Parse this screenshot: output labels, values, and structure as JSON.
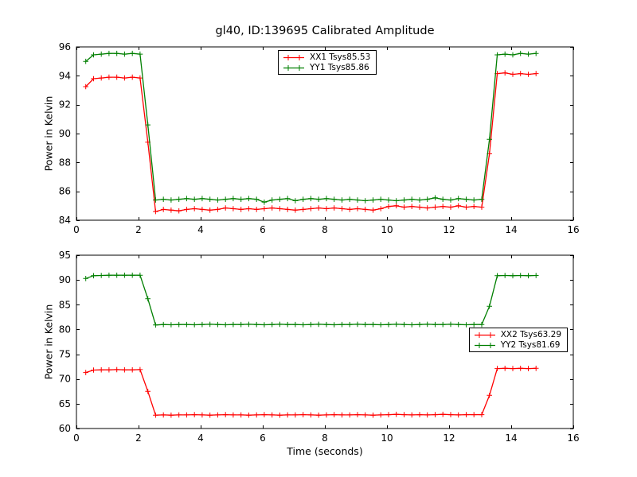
{
  "figure": {
    "title": "gl40, ID:139695 Calibrated Amplitude",
    "background_color": "#ffffff",
    "axis_color": "#000000"
  },
  "chart_data": [
    {
      "type": "line",
      "title": "gl40, ID:139695 Calibrated Amplitude",
      "xlabel": "",
      "ylabel": "Power in Kelvin",
      "xlim": [
        0,
        16
      ],
      "ylim": [
        84,
        96
      ],
      "xticks": [
        0,
        2,
        4,
        6,
        8,
        10,
        12,
        14,
        16
      ],
      "yticks": [
        84,
        86,
        88,
        90,
        92,
        94,
        96
      ],
      "grid": false,
      "legend_position": "upper center",
      "x": [
        0.3,
        0.55,
        0.8,
        1.05,
        1.3,
        1.55,
        1.8,
        2.05,
        2.3,
        2.55,
        2.8,
        3.05,
        3.3,
        3.55,
        3.8,
        4.05,
        4.3,
        4.55,
        4.8,
        5.05,
        5.3,
        5.55,
        5.8,
        6.05,
        6.3,
        6.55,
        6.8,
        7.05,
        7.3,
        7.55,
        7.8,
        8.05,
        8.3,
        8.55,
        8.8,
        9.05,
        9.3,
        9.55,
        9.8,
        10.05,
        10.3,
        10.55,
        10.8,
        11.05,
        11.3,
        11.55,
        11.8,
        12.05,
        12.3,
        12.55,
        12.8,
        13.05,
        13.3,
        13.55,
        13.8,
        14.05,
        14.3,
        14.55,
        14.8
      ],
      "series": [
        {
          "name": "XX1 Tsys85.53",
          "color": "#ff0000",
          "marker": "+",
          "y": [
            93.25,
            93.8,
            93.85,
            93.9,
            93.9,
            93.85,
            93.9,
            93.85,
            89.4,
            84.6,
            84.75,
            84.7,
            84.65,
            84.75,
            84.8,
            84.75,
            84.7,
            84.75,
            84.85,
            84.8,
            84.75,
            84.8,
            84.75,
            84.8,
            84.85,
            84.8,
            84.75,
            84.7,
            84.75,
            84.8,
            84.85,
            84.8,
            84.85,
            84.8,
            84.75,
            84.8,
            84.75,
            84.7,
            84.8,
            84.95,
            85.0,
            84.9,
            84.95,
            84.9,
            84.85,
            84.9,
            84.95,
            84.9,
            85.0,
            84.9,
            84.95,
            84.9,
            88.6,
            94.15,
            94.2,
            94.1,
            94.15,
            94.1,
            94.15
          ]
        },
        {
          "name": "YY1 Tsys85.86",
          "color": "#007f00",
          "marker": "+",
          "y": [
            95.0,
            95.45,
            95.5,
            95.55,
            95.55,
            95.5,
            95.55,
            95.5,
            90.6,
            85.4,
            85.45,
            85.4,
            85.45,
            85.5,
            85.45,
            85.5,
            85.45,
            85.4,
            85.45,
            85.5,
            85.45,
            85.5,
            85.45,
            85.25,
            85.4,
            85.45,
            85.5,
            85.35,
            85.45,
            85.5,
            85.45,
            85.5,
            85.45,
            85.4,
            85.45,
            85.4,
            85.35,
            85.4,
            85.45,
            85.4,
            85.35,
            85.4,
            85.45,
            85.4,
            85.45,
            85.55,
            85.45,
            85.4,
            85.5,
            85.45,
            85.4,
            85.45,
            89.6,
            95.45,
            95.5,
            95.45,
            95.55,
            95.5,
            95.55
          ]
        }
      ]
    },
    {
      "type": "line",
      "title": "",
      "xlabel": "Time (seconds)",
      "ylabel": "Power in Kelvin",
      "xlim": [
        0,
        16
      ],
      "ylim": [
        60,
        95
      ],
      "xticks": [
        0,
        2,
        4,
        6,
        8,
        10,
        12,
        14,
        16
      ],
      "yticks": [
        60,
        65,
        70,
        75,
        80,
        85,
        90,
        95
      ],
      "grid": false,
      "legend_position": "center right",
      "x": [
        0.3,
        0.55,
        0.8,
        1.05,
        1.3,
        1.55,
        1.8,
        2.05,
        2.3,
        2.55,
        2.8,
        3.05,
        3.3,
        3.55,
        3.8,
        4.05,
        4.3,
        4.55,
        4.8,
        5.05,
        5.3,
        5.55,
        5.8,
        6.05,
        6.3,
        6.55,
        6.8,
        7.05,
        7.3,
        7.55,
        7.8,
        8.05,
        8.3,
        8.55,
        8.8,
        9.05,
        9.3,
        9.55,
        9.8,
        10.05,
        10.3,
        10.55,
        10.8,
        11.05,
        11.3,
        11.55,
        11.8,
        12.05,
        12.3,
        12.55,
        12.8,
        13.05,
        13.3,
        13.55,
        13.8,
        14.05,
        14.3,
        14.55,
        14.8
      ],
      "series": [
        {
          "name": "XX2 Tsys63.29",
          "color": "#ff0000",
          "marker": "+",
          "y": [
            71.3,
            71.8,
            71.85,
            71.85,
            71.9,
            71.85,
            71.85,
            71.9,
            67.5,
            62.7,
            62.75,
            62.7,
            62.75,
            62.75,
            62.8,
            62.75,
            62.7,
            62.75,
            62.8,
            62.75,
            62.75,
            62.7,
            62.75,
            62.8,
            62.75,
            62.7,
            62.75,
            62.75,
            62.8,
            62.75,
            62.7,
            62.75,
            62.8,
            62.75,
            62.75,
            62.8,
            62.75,
            62.7,
            62.75,
            62.8,
            62.85,
            62.8,
            62.75,
            62.8,
            62.75,
            62.8,
            62.85,
            62.8,
            62.75,
            62.8,
            62.8,
            62.8,
            66.7,
            72.1,
            72.15,
            72.1,
            72.15,
            72.1,
            72.15
          ]
        },
        {
          "name": "YY2 Tsys81.69",
          "color": "#007f00",
          "marker": "+",
          "y": [
            90.3,
            90.85,
            90.9,
            90.95,
            90.95,
            90.95,
            90.95,
            90.95,
            86.2,
            80.9,
            81.0,
            80.95,
            81.0,
            81.0,
            80.95,
            81.0,
            81.05,
            81.0,
            80.95,
            81.0,
            81.0,
            81.05,
            81.0,
            80.95,
            81.0,
            81.05,
            81.0,
            81.0,
            80.95,
            81.0,
            81.05,
            81.0,
            80.95,
            81.0,
            81.0,
            81.05,
            81.0,
            81.0,
            80.95,
            81.0,
            81.05,
            81.0,
            80.95,
            81.0,
            81.05,
            81.0,
            81.0,
            81.05,
            81.0,
            80.95,
            81.0,
            81.0,
            84.7,
            90.85,
            90.9,
            90.85,
            90.9,
            90.85,
            90.9
          ]
        }
      ]
    }
  ]
}
